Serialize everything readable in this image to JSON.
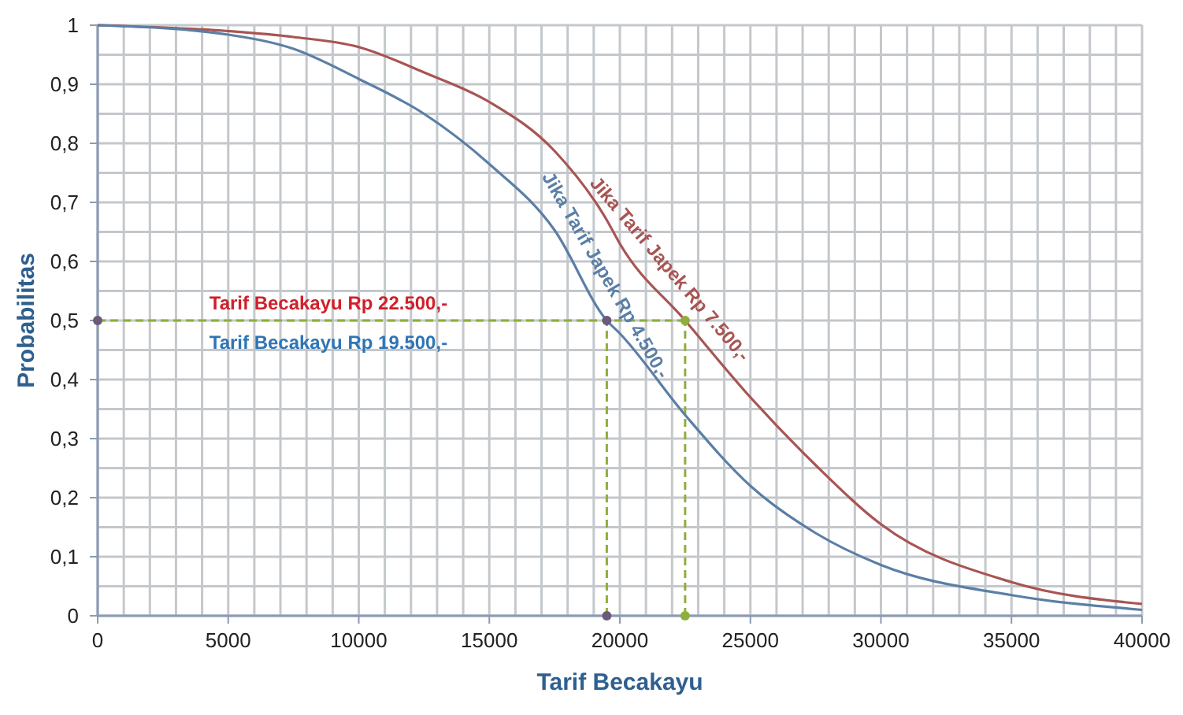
{
  "chart_data": {
    "type": "line",
    "xlabel": "Tarif Becakayu",
    "ylabel": "Probabilitas",
    "xlim": [
      0,
      40000
    ],
    "ylim": [
      0,
      1
    ],
    "xticks": [
      0,
      {
        "value": 1000,
        "label": null
      },
      {
        "value": 2000,
        "label": null
      },
      {
        "value": 3000,
        "label": null
      },
      {
        "value": 4000,
        "label": null
      },
      5000,
      {
        "value": 6000,
        "label": null
      },
      {
        "value": 7000,
        "label": null
      },
      {
        "value": 8000,
        "label": null
      },
      {
        "value": 9000,
        "label": null
      },
      10000,
      {
        "value": 11000,
        "label": null
      },
      {
        "value": 12000,
        "label": null
      },
      {
        "value": 13000,
        "label": null
      },
      {
        "value": 14000,
        "label": null
      },
      15000,
      {
        "value": 16000,
        "label": null
      },
      {
        "value": 17000,
        "label": null
      },
      {
        "value": 18000,
        "label": null
      },
      {
        "value": 19000,
        "label": null
      },
      20000,
      {
        "value": 21000,
        "label": null
      },
      {
        "value": 22000,
        "label": null
      },
      {
        "value": 23000,
        "label": null
      },
      {
        "value": 24000,
        "label": null
      },
      25000,
      {
        "value": 26000,
        "label": null
      },
      {
        "value": 27000,
        "label": null
      },
      {
        "value": 28000,
        "label": null
      },
      {
        "value": 29000,
        "label": null
      },
      30000,
      {
        "value": 31000,
        "label": null
      },
      {
        "value": 32000,
        "label": null
      },
      {
        "value": 33000,
        "label": null
      },
      {
        "value": 34000,
        "label": null
      },
      35000,
      {
        "value": 36000,
        "label": null
      },
      {
        "value": 37000,
        "label": null
      },
      {
        "value": 38000,
        "label": null
      },
      {
        "value": 39000,
        "label": null
      },
      40000
    ],
    "yticks": [
      0,
      {
        "value": 0.05,
        "label": null
      },
      {
        "value": 0.1,
        "label": "0,1"
      },
      {
        "value": 0.15,
        "label": null
      },
      {
        "value": 0.2,
        "label": "0,2"
      },
      {
        "value": 0.25,
        "label": null
      },
      {
        "value": 0.3,
        "label": "0,3"
      },
      {
        "value": 0.35,
        "label": null
      },
      {
        "value": 0.4,
        "label": "0,4"
      },
      {
        "value": 0.45,
        "label": null
      },
      {
        "value": 0.5,
        "label": "0,5"
      },
      {
        "value": 0.55,
        "label": null
      },
      {
        "value": 0.6,
        "label": "0,6"
      },
      {
        "value": 0.65,
        "label": null
      },
      {
        "value": 0.7,
        "label": "0,7"
      },
      {
        "value": 0.75,
        "label": null
      },
      {
        "value": 0.8,
        "label": "0,8"
      },
      {
        "value": 0.85,
        "label": null
      },
      {
        "value": 0.9,
        "label": "0,9"
      },
      {
        "value": 0.95,
        "label": null
      },
      1
    ],
    "grid": true,
    "marker": "none",
    "line_style": "solid",
    "x": [
      0,
      5000,
      7500,
      10000,
      12500,
      15000,
      17500,
      19500,
      20000,
      22500,
      25000,
      27500,
      30000,
      35000,
      40000
    ],
    "series": [
      {
        "name": "Jika Tarif Japek Rp 7.500,-",
        "color": "#a85553",
        "values": [
          1,
          0.99,
          0.98,
          0.963,
          0.92,
          0.87,
          0.787,
          0.67,
          0.63,
          0.5,
          0.37,
          0.255,
          0.155,
          0.057,
          0.02
        ]
      },
      {
        "name": "Jika Tarif Japek Rp 4.500,-",
        "color": "#5b7fa6",
        "values": [
          1,
          0.984,
          0.96,
          0.909,
          0.85,
          0.765,
          0.653,
          0.5,
          0.478,
          0.34,
          0.22,
          0.14,
          0.086,
          0.035,
          0.01
        ]
      },
      {
        "type": "scatter",
        "marker": "circle",
        "x": [
          0,
          19500,
          19500,
          22500,
          22500
        ],
        "values": [
          0.5,
          0.5,
          0,
          0.5,
          0
        ],
        "colors": [
          "#6b5a7a",
          "#6b5a7a",
          "#6b5a7a",
          "#8fae3c",
          "#8fae3c"
        ]
      }
    ],
    "ref_lines": [
      {
        "axis": "y",
        "value": 0.5,
        "color": "#8fae3c",
        "line_style": "dashed"
      },
      {
        "axis": "x",
        "value": 19500,
        "color": "#8fae3c",
        "line_style": "dashed"
      },
      {
        "axis": "x",
        "value": 22500,
        "color": "#8fae3c",
        "line_style": "dashed"
      }
    ],
    "annotations": [
      "Tarif Becakayu Rp 22.500,-",
      "Tarif Becakayu Rp 19.500,-"
    ]
  }
}
